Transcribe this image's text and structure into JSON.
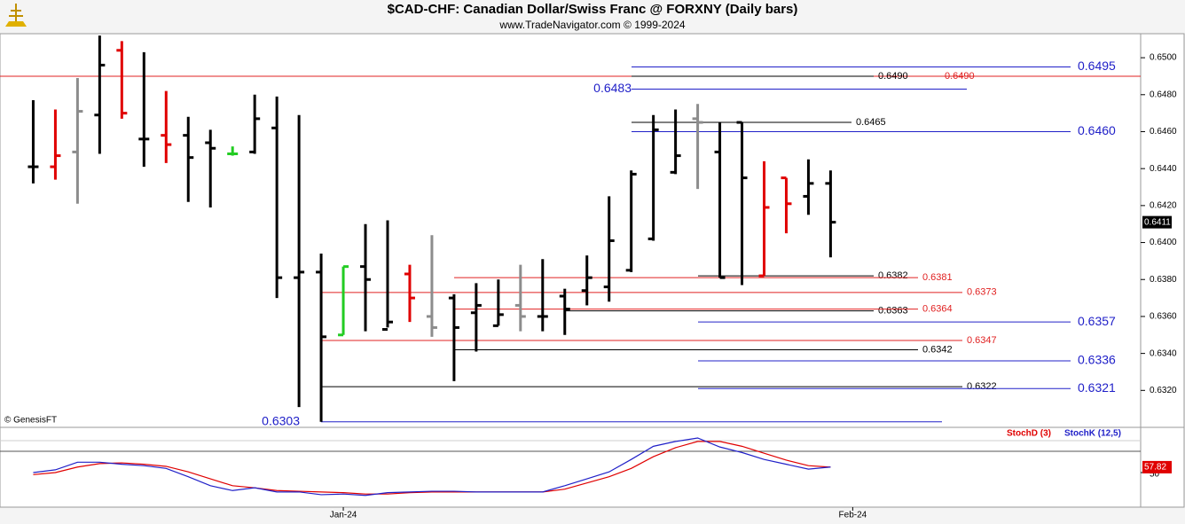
{
  "chart_data": [
    {
      "type": "ohlc",
      "title": "$CAD-CHF:  Canadian Dollar/Swiss Franc @ FORXNY  (Daily bars)",
      "subtitle": "www.TradeNavigator.com © 1999-2024",
      "watermark": "© GenesisFT",
      "xlim": [
        -1.5,
        50
      ],
      "xticks": [
        {
          "value": 14,
          "label": "Jan-24"
        },
        {
          "value": 37,
          "label": "Feb-24"
        }
      ],
      "ylim": [
        0.63,
        0.6513
      ],
      "yticks": [
        {
          "value": 0.632,
          "label": "0.6320"
        },
        {
          "value": 0.634,
          "label": "0.6340"
        },
        {
          "value": 0.636,
          "label": "0.6360"
        },
        {
          "value": 0.638,
          "label": "0.6380"
        },
        {
          "value": 0.64,
          "label": "0.6400"
        },
        {
          "value": 0.642,
          "label": "0.6420"
        },
        {
          "value": 0.644,
          "label": "0.6440"
        },
        {
          "value": 0.646,
          "label": "0.6460"
        },
        {
          "value": 0.648,
          "label": "0.6480"
        },
        {
          "value": 0.65,
          "label": "0.6500"
        }
      ],
      "open": [
        0.6441,
        0.6441,
        0.6449,
        0.6469,
        0.6504,
        0.6456,
        0.6458,
        0.6458,
        0.6454,
        0.6448,
        0.6449,
        0.6462,
        0.6381,
        0.6384,
        0.635,
        0.6387,
        0.6353,
        0.6383,
        0.636,
        0.637,
        0.6362,
        0.6355,
        0.6366,
        0.636,
        0.6371,
        0.6374,
        0.6376,
        0.6385,
        0.6402,
        0.6438,
        0.6467,
        0.6449,
        0.6465,
        0.6382,
        0.6435,
        0.6425,
        0.6432
      ],
      "high": [
        0.6477,
        0.6472,
        0.6489,
        0.6512,
        0.6509,
        0.6503,
        0.6482,
        0.6468,
        0.6461,
        0.6452,
        0.648,
        0.6479,
        0.6469,
        0.6394,
        0.6387,
        0.641,
        0.6412,
        0.6388,
        0.6404,
        0.6372,
        0.6378,
        0.638,
        0.6388,
        0.6391,
        0.6375,
        0.6393,
        0.6425,
        0.6439,
        0.6469,
        0.6472,
        0.6475,
        0.6465,
        0.6465,
        0.6444,
        0.6435,
        0.6445,
        0.6439
      ],
      "low": [
        0.6432,
        0.6434,
        0.6421,
        0.6448,
        0.6467,
        0.6441,
        0.6443,
        0.6422,
        0.6419,
        0.6447,
        0.6448,
        0.637,
        0.6311,
        0.6303,
        0.635,
        0.6352,
        0.6354,
        0.6357,
        0.6349,
        0.6325,
        0.6341,
        0.6355,
        0.6352,
        0.6352,
        0.635,
        0.6366,
        0.6368,
        0.6384,
        0.6401,
        0.6437,
        0.6429,
        0.6381,
        0.6377,
        0.6382,
        0.6405,
        0.6415,
        0.6392
      ],
      "close": [
        0.6441,
        0.6447,
        0.6471,
        0.6496,
        0.647,
        0.6456,
        0.6453,
        0.6446,
        0.6451,
        0.6448,
        0.6467,
        0.6381,
        0.6384,
        0.6349,
        0.6387,
        0.638,
        0.6357,
        0.637,
        0.6354,
        0.6354,
        0.6366,
        0.6361,
        0.636,
        0.636,
        0.6364,
        0.6381,
        0.6401,
        0.6437,
        0.6461,
        0.6447,
        0.6465,
        0.6381,
        0.6435,
        0.6419,
        0.6421,
        0.6432,
        0.6411
      ],
      "bar_colors": [
        "#000000",
        "#e00000",
        "#8c8c8c",
        "#000000",
        "#e00000",
        "#000000",
        "#e00000",
        "#000000",
        "#000000",
        "#22cc22",
        "#000000",
        "#000000",
        "#000000",
        "#000000",
        "#22cc22",
        "#000000",
        "#000000",
        "#e00000",
        "#8c8c8c",
        "#000000",
        "#000000",
        "#000000",
        "#8c8c8c",
        "#000000",
        "#000000",
        "#000000",
        "#000000",
        "#000000",
        "#000000",
        "#000000",
        "#8c8c8c",
        "#000000",
        "#000000",
        "#e00000",
        "#e00000",
        "#000000",
        "#000000"
      ],
      "levels": [
        {
          "value": 0.6495,
          "label": "0.6495",
          "color": "#2020c8"
        },
        {
          "value": 0.649,
          "label": "0.6490",
          "color": "#e02020"
        },
        {
          "value": 0.649,
          "label": "0.6490",
          "color": "#000000"
        },
        {
          "value": 0.6483,
          "label": "0.6483",
          "color": "#2020c8"
        },
        {
          "value": 0.6465,
          "label": "0.6465",
          "color": "#000000"
        },
        {
          "value": 0.646,
          "label": "0.6460",
          "color": "#2020c8"
        },
        {
          "value": 0.6382,
          "label": "0.6382",
          "color": "#000000"
        },
        {
          "value": 0.6381,
          "label": "0.6381",
          "color": "#e02020"
        },
        {
          "value": 0.6373,
          "label": "0.6373",
          "color": "#e02020"
        },
        {
          "value": 0.6363,
          "label": "0.6363",
          "color": "#000000"
        },
        {
          "value": 0.6364,
          "label": "0.6364",
          "color": "#e02020"
        },
        {
          "value": 0.6357,
          "label": "0.6357",
          "color": "#2020c8"
        },
        {
          "value": 0.6347,
          "label": "0.6347",
          "color": "#e02020"
        },
        {
          "value": 0.6342,
          "label": "0.6342",
          "color": "#000000"
        },
        {
          "value": 0.6336,
          "label": "0.6336",
          "color": "#2020c8"
        },
        {
          "value": 0.6322,
          "label": "0.6322",
          "color": "#000000"
        },
        {
          "value": 0.6321,
          "label": "0.6321",
          "color": "#2020c8"
        },
        {
          "value": 0.6303,
          "label": "0.6303",
          "color": "#2020c8"
        }
      ]
    },
    {
      "type": "line",
      "ylim": [
        0,
        100
      ],
      "yticks": [
        50
      ],
      "series": [
        {
          "name": "StochD (3)",
          "color": "#e00000",
          "values": [
            47,
            50,
            58,
            63,
            64,
            62,
            59,
            51,
            41,
            31,
            28,
            24,
            23,
            22,
            21,
            19,
            19,
            21,
            22,
            22,
            22,
            22,
            22,
            22,
            26,
            35,
            44,
            56,
            73,
            86,
            95,
            95,
            88,
            78,
            68,
            60,
            57.82
          ]
        },
        {
          "name": "StochK (12,5)",
          "color": "#2020c8",
          "values": [
            50,
            54,
            65,
            65,
            62,
            60,
            56,
            44,
            31,
            24,
            28,
            22,
            22,
            18,
            19,
            17,
            21,
            22,
            23,
            23,
            22,
            22,
            22,
            22,
            31,
            41,
            51,
            69,
            88,
            95,
            100,
            87,
            79,
            69,
            62,
            55,
            58
          ]
        }
      ]
    }
  ]
}
